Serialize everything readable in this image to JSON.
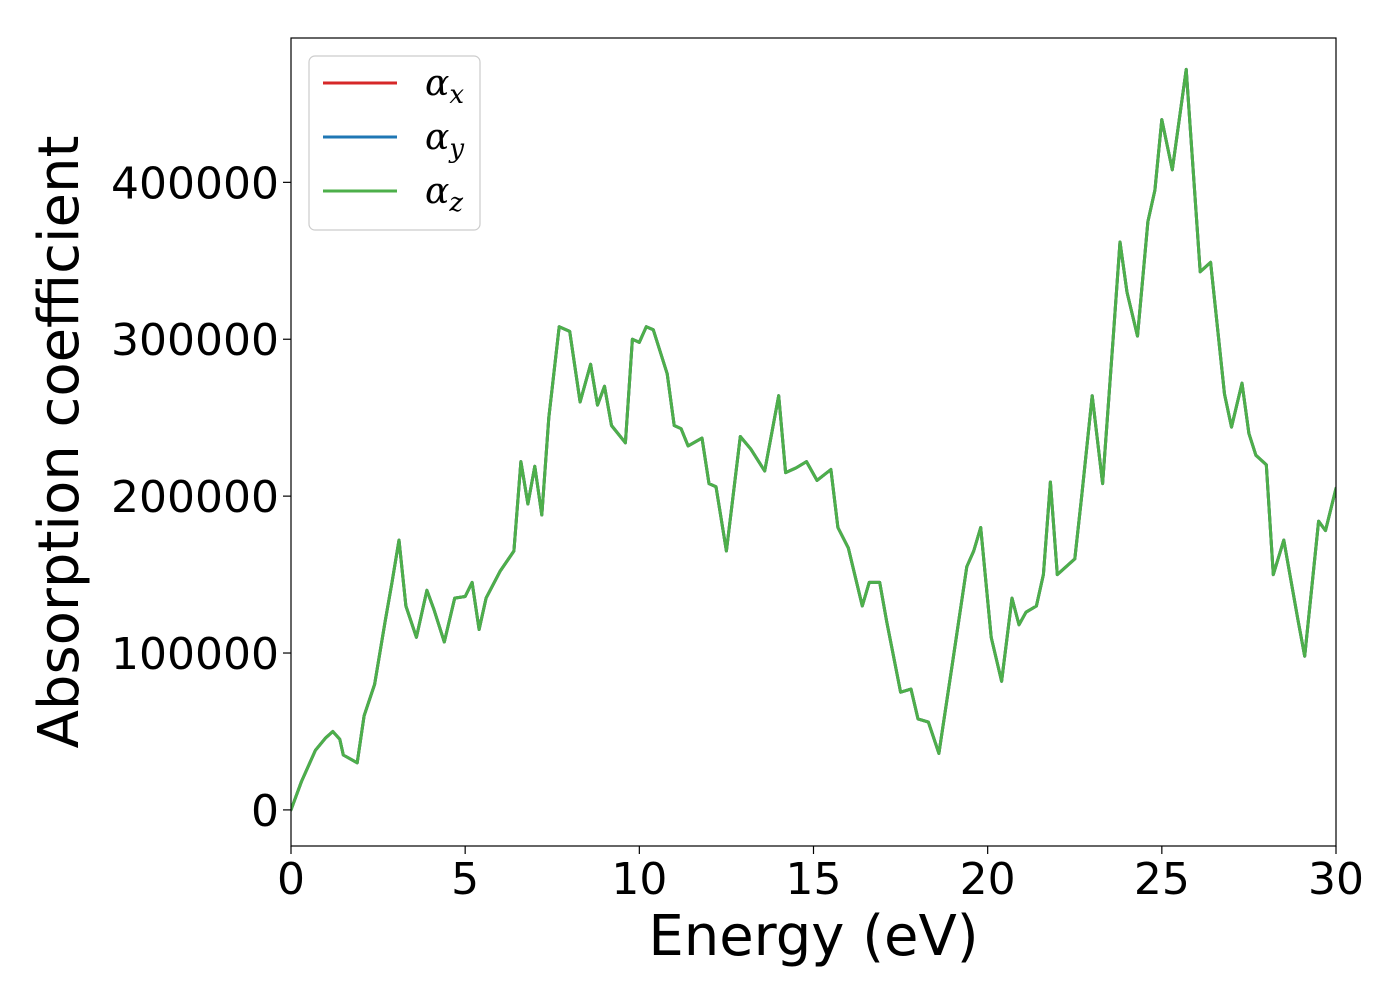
{
  "chart_data": {
    "type": "line",
    "title": "",
    "xlabel": "Energy (eV)",
    "ylabel": "Absorption coefficient",
    "xlim": [
      0,
      30
    ],
    "ylim": [
      -23000,
      492000
    ],
    "xticks": [
      0,
      5,
      10,
      15,
      20,
      25,
      30
    ],
    "xtick_labels": [
      "0",
      "5",
      "10",
      "15",
      "20",
      "25",
      "30"
    ],
    "yticks": [
      0,
      100000,
      200000,
      300000,
      400000
    ],
    "ytick_labels": [
      "0",
      "100000",
      "200000",
      "300000",
      "400000"
    ],
    "grid": false,
    "legend_position": "top-left",
    "x": [
      0,
      0.3,
      0.7,
      1.0,
      1.2,
      1.4,
      1.5,
      1.9,
      2.1,
      2.4,
      2.7,
      2.9,
      3.1,
      3.3,
      3.6,
      3.9,
      4.1,
      4.4,
      4.7,
      5.0,
      5.2,
      5.4,
      5.6,
      6.0,
      6.4,
      6.6,
      6.8,
      7.0,
      7.2,
      7.4,
      7.7,
      8.0,
      8.3,
      8.6,
      8.8,
      9.0,
      9.2,
      9.6,
      9.8,
      10.0,
      10.2,
      10.4,
      10.8,
      11.0,
      11.2,
      11.4,
      11.8,
      12.0,
      12.2,
      12.5,
      12.9,
      13.2,
      13.6,
      14.0,
      14.2,
      14.5,
      14.8,
      15.1,
      15.5,
      15.7,
      16.0,
      16.4,
      16.6,
      16.9,
      17.1,
      17.5,
      17.8,
      18.0,
      18.3,
      18.6,
      19.0,
      19.4,
      19.6,
      19.8,
      20.1,
      20.4,
      20.7,
      20.9,
      21.1,
      21.4,
      21.6,
      21.8,
      22.0,
      22.5,
      22.7,
      23.0,
      23.3,
      23.6,
      23.8,
      24.0,
      24.3,
      24.6,
      24.8,
      25.0,
      25.3,
      25.7,
      26.1,
      26.4,
      26.8,
      27.0,
      27.3,
      27.5,
      27.7,
      28.0,
      28.2,
      28.5,
      28.9,
      29.1,
      29.5,
      29.7,
      30.0
    ],
    "series": [
      {
        "name": "α_x",
        "color": "#d62728",
        "values": [
          0,
          18000,
          38000,
          46000,
          50000,
          45000,
          35000,
          30000,
          60000,
          80000,
          120000,
          145000,
          172000,
          130000,
          110000,
          140000,
          128000,
          107000,
          135000,
          136000,
          145000,
          115000,
          135000,
          152000,
          165000,
          222000,
          195000,
          219000,
          188000,
          250000,
          308000,
          305000,
          260000,
          284000,
          258000,
          270000,
          245000,
          234000,
          300000,
          298000,
          308000,
          306000,
          278000,
          245000,
          243000,
          232000,
          237000,
          208000,
          206000,
          165000,
          238000,
          230000,
          216000,
          264000,
          215000,
          218000,
          222000,
          210000,
          217000,
          180000,
          167000,
          130000,
          145000,
          145000,
          120000,
          75000,
          77000,
          58000,
          56000,
          36000,
          95000,
          155000,
          165000,
          180000,
          110000,
          82000,
          135000,
          118000,
          126000,
          130000,
          150000,
          209000,
          150000,
          160000,
          200000,
          264000,
          208000,
          300000,
          362000,
          330000,
          302000,
          375000,
          395000,
          440000,
          408000,
          472000,
          343000,
          349000,
          265000,
          244000,
          272000,
          240000,
          226000,
          220000,
          150000,
          172000,
          122000,
          98000,
          184000,
          178000,
          205000
        ]
      },
      {
        "name": "α_y",
        "color": "#1f77b4",
        "values": [
          0,
          18000,
          38000,
          46000,
          50000,
          45000,
          35000,
          30000,
          60000,
          80000,
          120000,
          145000,
          172000,
          130000,
          110000,
          140000,
          128000,
          107000,
          135000,
          136000,
          145000,
          115000,
          135000,
          152000,
          165000,
          222000,
          195000,
          219000,
          188000,
          250000,
          308000,
          305000,
          260000,
          284000,
          258000,
          270000,
          245000,
          234000,
          300000,
          298000,
          308000,
          306000,
          278000,
          245000,
          243000,
          232000,
          237000,
          208000,
          206000,
          165000,
          238000,
          230000,
          216000,
          264000,
          215000,
          218000,
          222000,
          210000,
          217000,
          180000,
          167000,
          130000,
          145000,
          145000,
          120000,
          75000,
          77000,
          58000,
          56000,
          36000,
          95000,
          155000,
          165000,
          180000,
          110000,
          82000,
          135000,
          118000,
          126000,
          130000,
          150000,
          209000,
          150000,
          160000,
          200000,
          264000,
          208000,
          300000,
          362000,
          330000,
          302000,
          375000,
          395000,
          440000,
          408000,
          472000,
          343000,
          349000,
          265000,
          244000,
          272000,
          240000,
          226000,
          220000,
          150000,
          172000,
          122000,
          98000,
          184000,
          178000,
          205000
        ]
      },
      {
        "name": "α_z",
        "color": "#4daf4a",
        "values": [
          0,
          18000,
          38000,
          46000,
          50000,
          45000,
          35000,
          30000,
          60000,
          80000,
          120000,
          145000,
          172000,
          130000,
          110000,
          140000,
          128000,
          107000,
          135000,
          136000,
          145000,
          115000,
          135000,
          152000,
          165000,
          222000,
          195000,
          219000,
          188000,
          250000,
          308000,
          305000,
          260000,
          284000,
          258000,
          270000,
          245000,
          234000,
          300000,
          298000,
          308000,
          306000,
          278000,
          245000,
          243000,
          232000,
          237000,
          208000,
          206000,
          165000,
          238000,
          230000,
          216000,
          264000,
          215000,
          218000,
          222000,
          210000,
          217000,
          180000,
          167000,
          130000,
          145000,
          145000,
          120000,
          75000,
          77000,
          58000,
          56000,
          36000,
          95000,
          155000,
          165000,
          180000,
          110000,
          82000,
          135000,
          118000,
          126000,
          130000,
          150000,
          209000,
          150000,
          160000,
          200000,
          264000,
          208000,
          300000,
          362000,
          330000,
          302000,
          375000,
          395000,
          440000,
          408000,
          472000,
          343000,
          349000,
          265000,
          244000,
          272000,
          240000,
          226000,
          220000,
          150000,
          172000,
          122000,
          98000,
          184000,
          178000,
          205000
        ]
      }
    ],
    "legend": [
      {
        "symbol": "α",
        "sub": "x",
        "color": "#d62728"
      },
      {
        "symbol": "α",
        "sub": "y",
        "color": "#1f77b4"
      },
      {
        "symbol": "α",
        "sub": "z",
        "color": "#4daf4a"
      }
    ]
  }
}
